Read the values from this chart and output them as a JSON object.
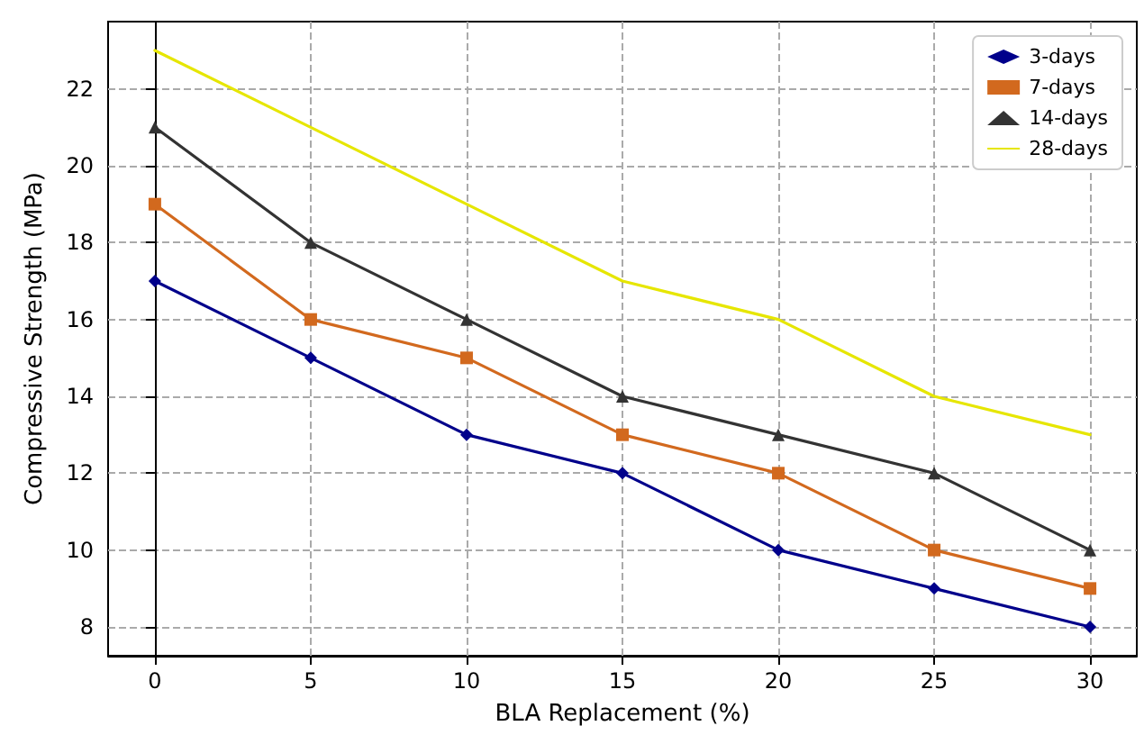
{
  "chart_data": {
    "type": "line",
    "xlabel": "BLA Replacement (%)",
    "ylabel": "Compressive Strength (MPa)",
    "x": [
      0,
      5,
      10,
      15,
      20,
      25,
      30
    ],
    "series": [
      {
        "name": "3-days",
        "color": "#00008b",
        "marker": "diamond",
        "values": [
          17,
          15,
          13,
          12,
          10,
          9,
          8
        ]
      },
      {
        "name": "7-days",
        "color": "#d2691e",
        "marker": "square",
        "values": [
          19,
          16,
          15,
          13,
          12,
          10,
          9
        ]
      },
      {
        "name": "14-days",
        "color": "#333333",
        "marker": "triangle",
        "values": [
          21,
          18,
          16,
          14,
          13,
          12,
          10
        ]
      },
      {
        "name": "28-days",
        "color": "#e6e600",
        "marker": "none",
        "values": [
          23,
          21,
          19,
          17,
          16,
          14,
          13
        ]
      }
    ],
    "xlim": [
      -1.5,
      31.5
    ],
    "xticks": [
      0,
      5,
      10,
      15,
      20,
      25,
      30
    ],
    "ylim": [
      7.25,
      23.75
    ],
    "yticks": [
      8,
      10,
      12,
      14,
      16,
      18,
      20,
      22
    ],
    "grid": true,
    "legend": "top right"
  }
}
